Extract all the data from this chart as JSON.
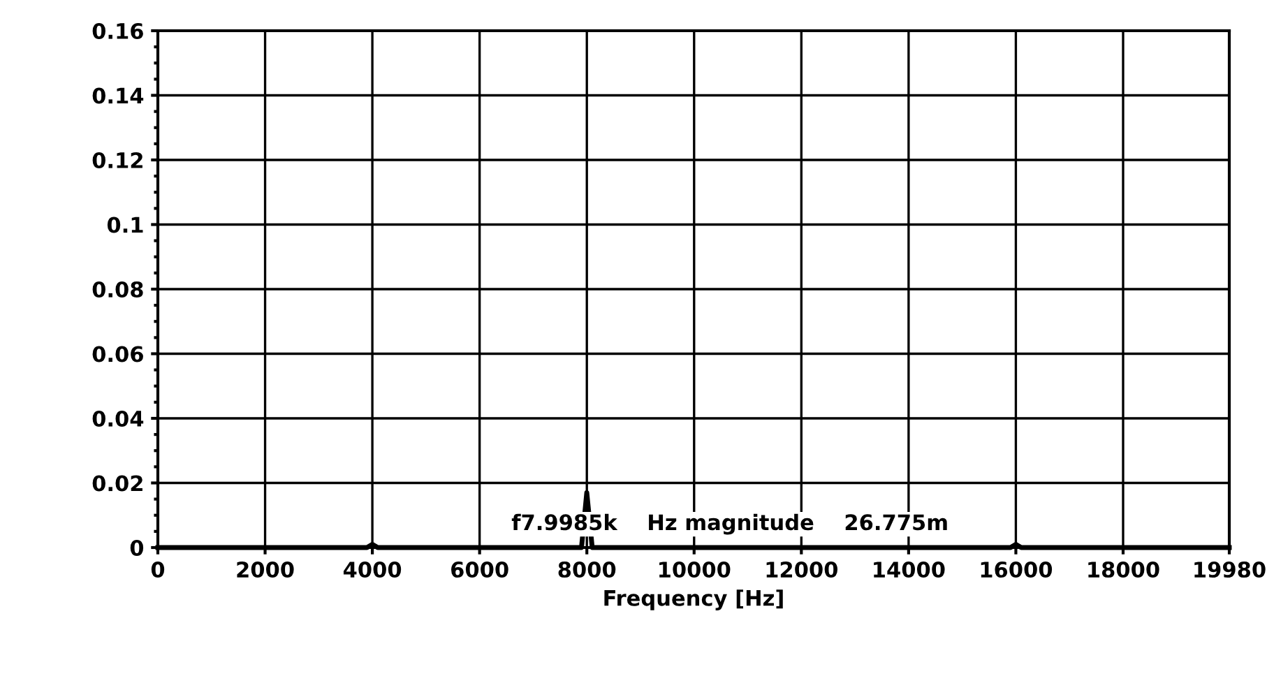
{
  "chart_data": {
    "type": "line",
    "xlabel": "Frequency [Hz]",
    "x": [
      0,
      3900,
      4000,
      4100,
      7900,
      7998.5,
      8100,
      15900,
      16000,
      16100,
      19980
    ],
    "series": [
      {
        "color": "#000000",
        "values": [
          0,
          0,
          0.001,
          0,
          0,
          0.017,
          0,
          0,
          0.001,
          0,
          0
        ]
      }
    ],
    "xlim": [
      0,
      19980
    ],
    "xticks": [
      0,
      2000,
      4000,
      6000,
      8000,
      10000,
      12000,
      14000,
      16000,
      18000,
      19980
    ],
    "ylim": [
      0,
      0.16
    ],
    "yticks": [
      0,
      0.02,
      0.04,
      0.06,
      0.08,
      0.1,
      0.12,
      0.14,
      0.16
    ],
    "grid": true,
    "annotations": [
      "f7.9985k    Hz magnitude    26.775m"
    ]
  }
}
